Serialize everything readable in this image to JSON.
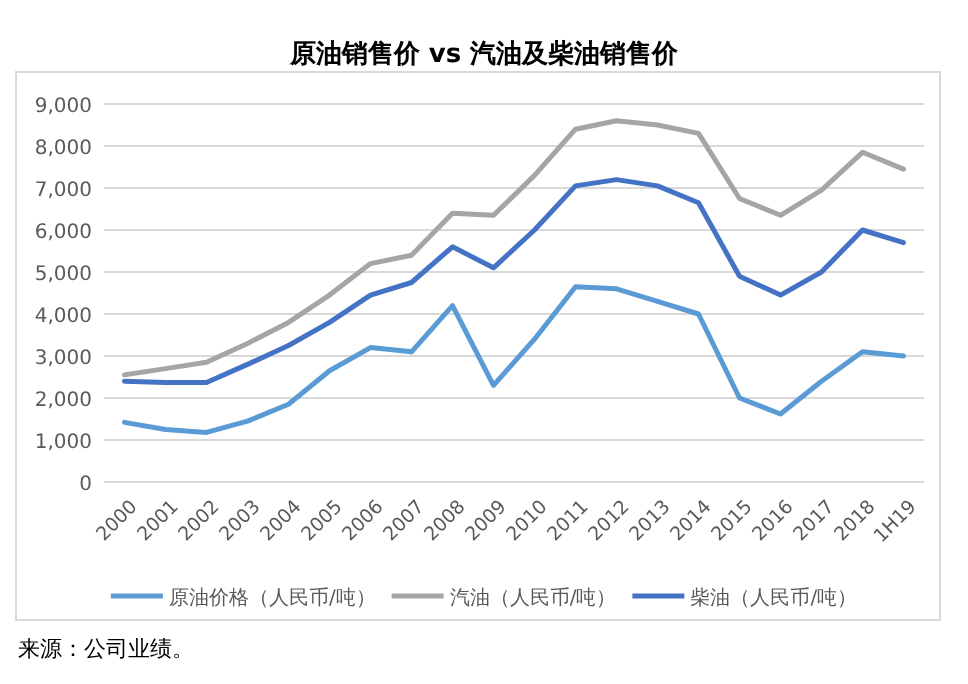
{
  "chart_data": {
    "type": "line",
    "title": "原油销售价 vs 汽油及柴油销售价",
    "categories": [
      "2000",
      "2001",
      "2002",
      "2003",
      "2004",
      "2005",
      "2006",
      "2007",
      "2008",
      "2009",
      "2010",
      "2011",
      "2012",
      "2013",
      "2014",
      "2015",
      "2016",
      "2017",
      "2018",
      "1H19"
    ],
    "series": [
      {
        "name": "原油价格（人民币/吨）",
        "color": "#5b9bd5",
        "values": [
          1420,
          1250,
          1180,
          1450,
          1850,
          2650,
          3200,
          3100,
          4200,
          2300,
          3400,
          4650,
          4600,
          4300,
          4000,
          2000,
          1620,
          2400,
          3100,
          3000
        ]
      },
      {
        "name": "汽油（人民币/吨）",
        "color": "#a5a5a5",
        "values": [
          2550,
          2700,
          2850,
          3300,
          3800,
          4450,
          5200,
          5400,
          6400,
          6350,
          7300,
          8400,
          8600,
          8500,
          8300,
          6750,
          6350,
          6950,
          7850,
          7450
        ]
      },
      {
        "name": "柴油（人民币/吨）",
        "color": "#4472c4",
        "values": [
          2400,
          2370,
          2370,
          2800,
          3250,
          3800,
          4450,
          4750,
          5600,
          5100,
          6000,
          7050,
          7200,
          7050,
          6650,
          4900,
          4450,
          5000,
          6000,
          5700
        ]
      }
    ],
    "ylim": [
      0,
      9000
    ],
    "yticks": [
      {
        "value": 0,
        "label": "0"
      },
      {
        "value": 1000,
        "label": "1,000"
      },
      {
        "value": 2000,
        "label": "2,000"
      },
      {
        "value": 3000,
        "label": "3,000"
      },
      {
        "value": 4000,
        "label": "4,000"
      },
      {
        "value": 5000,
        "label": "5,000"
      },
      {
        "value": 6000,
        "label": "6,000"
      },
      {
        "value": 7000,
        "label": "7,000"
      },
      {
        "value": 8000,
        "label": "8,000"
      },
      {
        "value": 9000,
        "label": "9,000"
      }
    ],
    "grid": "y",
    "legend": "bottom",
    "marker": "none",
    "line_style": "solid",
    "annotations": [
      "来源：公司业绩。"
    ]
  }
}
